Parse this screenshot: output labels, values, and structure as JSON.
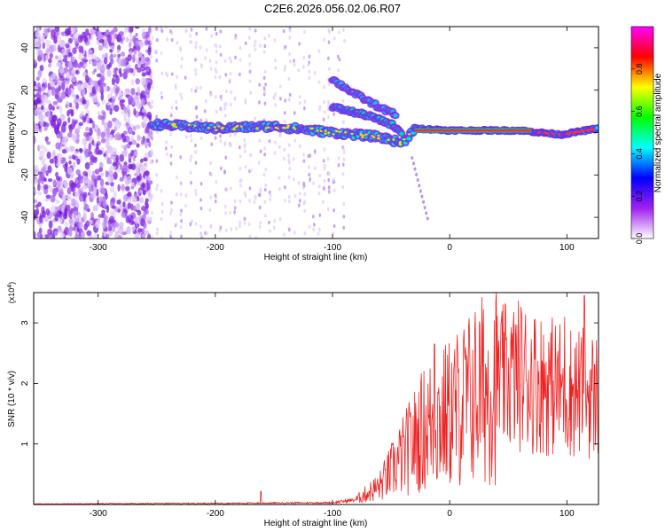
{
  "figure_title": "C2E6.2026.056.02.06.R07",
  "chart_data": [
    {
      "type": "heatmap",
      "title": "",
      "xlabel": "Height of straight line (km)",
      "ylabel": "Frequency (Hz)",
      "xlim": [
        -355,
        127
      ],
      "ylim": [
        -50,
        50
      ],
      "xticks": [
        -300,
        -200,
        -100,
        0,
        100
      ],
      "yticks": [
        -40,
        -20,
        0,
        20,
        40
      ],
      "colorbar": {
        "label": "Normalized spectral amplitude",
        "range": [
          0,
          1
        ],
        "ticks": [
          "0.0",
          "0.2",
          "0.4",
          "0.6",
          "0.8"
        ],
        "colors": [
          "#ffffff",
          "#a020f0",
          "#0000ff",
          "#00ffff",
          "#00ff00",
          "#ffff00",
          "#ff0000",
          "#ff00ff"
        ]
      },
      "features": {
        "noise_region": [
          -355,
          -255
        ],
        "main_ridge": [
          [
            -255,
            4
          ],
          [
            -200,
            2
          ],
          [
            -150,
            3
          ],
          [
            -100,
            0
          ],
          [
            -60,
            -2
          ],
          [
            -40,
            -5
          ],
          [
            -30,
            2
          ],
          [
            0,
            1
          ],
          [
            60,
            1
          ],
          [
            95,
            -1
          ],
          [
            127,
            2
          ]
        ],
        "secondary_ridge": [
          [
            -100,
            12
          ],
          [
            -70,
            8
          ],
          [
            -50,
            4
          ],
          [
            -40,
            0
          ]
        ],
        "upper_branch": [
          [
            -100,
            25
          ],
          [
            -80,
            18
          ],
          [
            -60,
            12
          ],
          [
            -45,
            8
          ]
        ],
        "peak_band": [
          -30,
          70
        ]
      }
    },
    {
      "type": "line",
      "title": "",
      "xlabel": "Height of straight line (km)",
      "ylabel": "SNR (10 * v/v)",
      "y_multiplier": "(x10^4)",
      "xlim": [
        -355,
        127
      ],
      "ylim": [
        0,
        3.5
      ],
      "xticks": [
        -300,
        -200,
        -100,
        0,
        100
      ],
      "yticks": [
        1,
        2,
        3
      ],
      "series": [
        {
          "color": "#ee2222",
          "envelope": [
            [
              -355,
              0.01
            ],
            [
              -200,
              0.02
            ],
            [
              -100,
              0.03
            ],
            [
              -80,
              0.08
            ],
            [
              -60,
              0.3
            ],
            [
              -40,
              0.8
            ],
            [
              -20,
              1.3
            ],
            [
              0,
              1.5
            ],
            [
              20,
              1.8
            ],
            [
              40,
              2.05
            ],
            [
              60,
              2.15
            ],
            [
              80,
              2.0
            ],
            [
              100,
              1.9
            ],
            [
              127,
              1.8
            ]
          ],
          "spikes": [
            [
              -161,
              0.22
            ],
            [
              -13,
              2.65
            ],
            [
              98,
              3.1
            ],
            [
              115,
              3.45
            ],
            [
              124,
              2.3
            ]
          ]
        }
      ]
    }
  ]
}
